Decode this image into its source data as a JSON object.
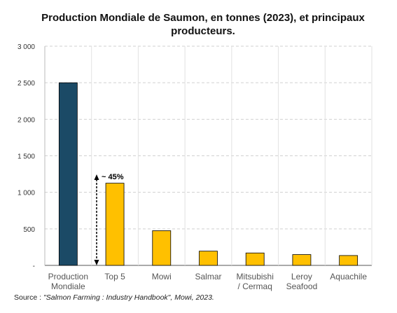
{
  "title_line1": "Production Mondiale de Saumon, en tonnes (2023), et principaux",
  "title_line2": "producteurs.",
  "source_prefix": "Source : ",
  "source_text": "\"Salmon Farming : Industry Handbook\", Mowi, 2023.",
  "annotation": "~ 45%",
  "chart_data": {
    "type": "bar",
    "title": "Production Mondiale de Saumon, en tonnes (2023), et principaux producteurs.",
    "categories": [
      [
        "Production",
        "Mondiale"
      ],
      [
        "Top 5"
      ],
      [
        "Mowi"
      ],
      [
        "Salmar"
      ],
      [
        "Mitsubishi",
        "/ Cermaq"
      ],
      [
        "Leroy",
        "Seafood"
      ],
      [
        "Aquachile"
      ]
    ],
    "values": [
      2500,
      1125,
      475,
      195,
      170,
      148,
      135
    ],
    "colors": [
      "#1b4a66",
      "#ffc000",
      "#ffc000",
      "#ffc000",
      "#ffc000",
      "#ffc000",
      "#ffc000"
    ],
    "ylim": [
      0,
      3000
    ],
    "yticks": [
      0,
      500,
      1000,
      1500,
      2000,
      2500,
      3000
    ],
    "ytick_labels": [
      "-",
      "500",
      "1 000",
      "1 500",
      "2 000",
      "2 500",
      "3 000"
    ],
    "grid": true,
    "legend": "none"
  }
}
